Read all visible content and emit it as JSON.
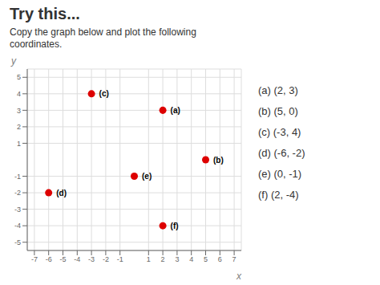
{
  "chart_data": {
    "type": "scatter",
    "title": "Try this...",
    "subtitle": "Copy the graph below and plot the following\ncoordinates.",
    "x_label": "x",
    "y_label": "y",
    "x": [
      2,
      5,
      -3,
      -6,
      0,
      2
    ],
    "values": [
      3,
      0,
      4,
      -2,
      -1,
      -4
    ],
    "point_labels": [
      "(a)",
      "(b)",
      "(c)",
      "(d)",
      "(e)",
      "(f)"
    ],
    "annotations": [
      "(a) (2, 3)",
      "(b) (5, 0)",
      "(c) (-3, 4)",
      "(d) (-6, -2)",
      "(e) (0, -1)",
      "(f) (2, -4)"
    ],
    "color": "#dd0000",
    "marker": "circle",
    "xlim": [
      -7.5,
      7.5
    ],
    "ylim": [
      -5.5,
      5.5
    ],
    "xticks": [
      -7,
      -6,
      -5,
      -4,
      -3,
      -2,
      -1,
      1,
      2,
      3,
      4,
      5,
      6,
      7
    ],
    "yticks": [
      -5,
      -4,
      -3,
      -2,
      -1,
      1,
      2,
      3,
      4,
      5
    ],
    "grid": true
  }
}
